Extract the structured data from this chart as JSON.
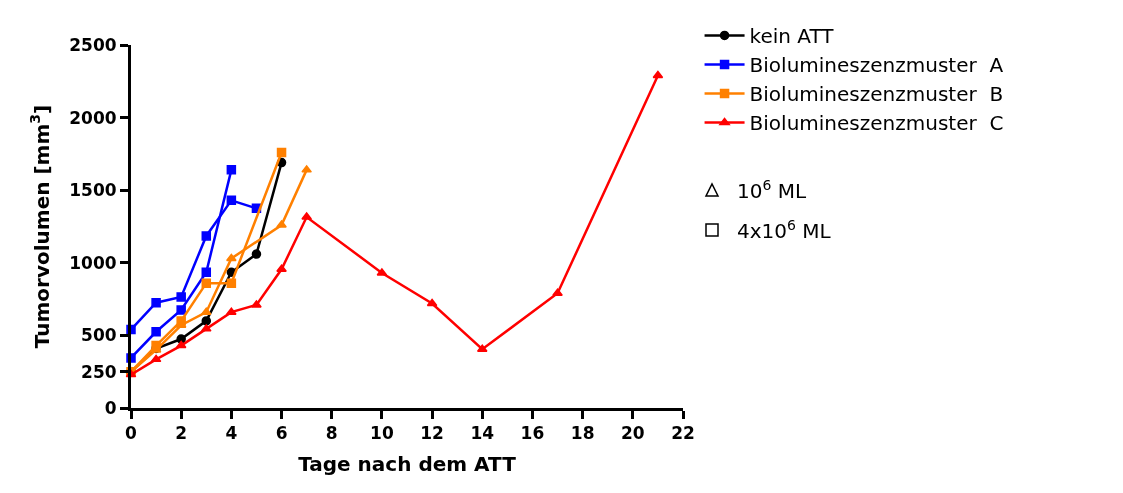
{
  "chart_data": {
    "type": "line",
    "xlabel": "Tage nach dem ATT",
    "ylabel": "Tumorvolumen [mm$^{3}$]",
    "xlim": [
      0,
      22
    ],
    "xticks": [
      0,
      2,
      4,
      6,
      8,
      10,
      12,
      14,
      16,
      18,
      20,
      22
    ],
    "ylim": [
      0,
      2500
    ],
    "yticks": [
      0,
      250,
      500,
      1000,
      1500,
      2000,
      2500
    ],
    "legend": "right",
    "line_style": "solid",
    "series": [
      {
        "name": "kein ATT",
        "color": "#000000",
        "marker": "circle",
        "x": [
          0,
          1,
          2,
          3,
          4,
          5,
          6
        ],
        "values": [
          250,
          410,
          475,
          600,
          935,
          1060,
          1690
        ]
      },
      {
        "name": "Biolumineszenzmuster  A",
        "color": "#0000ff",
        "marker": "square",
        "x": [
          0,
          1,
          2,
          3,
          4,
          5
        ],
        "values": [
          540,
          725,
          765,
          1185,
          1430,
          1375
        ]
      },
      {
        "color": "#0000ff",
        "marker": "square",
        "x": [
          0,
          1,
          2,
          3,
          4
        ],
        "values": [
          345,
          525,
          675,
          935,
          1640
        ]
      },
      {
        "name": "Biolumineszenzmuster  B",
        "color": "#ff8000",
        "marker": "square",
        "x": [
          0,
          1,
          2,
          3,
          4,
          6
        ],
        "values": [
          250,
          430,
          600,
          860,
          860,
          1760
        ]
      },
      {
        "color": "#ff8000",
        "marker": "triangle",
        "x": [
          0,
          1,
          2,
          3,
          4,
          6,
          7
        ],
        "values": [
          250,
          400,
          570,
          660,
          1030,
          1260,
          1640
        ]
      },
      {
        "name": "Biolumineszenzmuster  C",
        "color": "#ff0000",
        "marker": "triangle",
        "x": [
          0,
          1,
          2,
          3,
          4,
          5,
          6,
          7,
          10,
          12,
          14,
          17,
          21
        ],
        "values": [
          230,
          335,
          430,
          545,
          660,
          710,
          955,
          1315,
          930,
          720,
          405,
          790,
          2290
        ]
      },
      {
        "name": "10$^{6}$ ML",
        "color": "#000000",
        "marker": "triangle"
      },
      {
        "name": "4x10$^{6}$ ML",
        "color": "#000000",
        "marker": "square"
      }
    ]
  }
}
